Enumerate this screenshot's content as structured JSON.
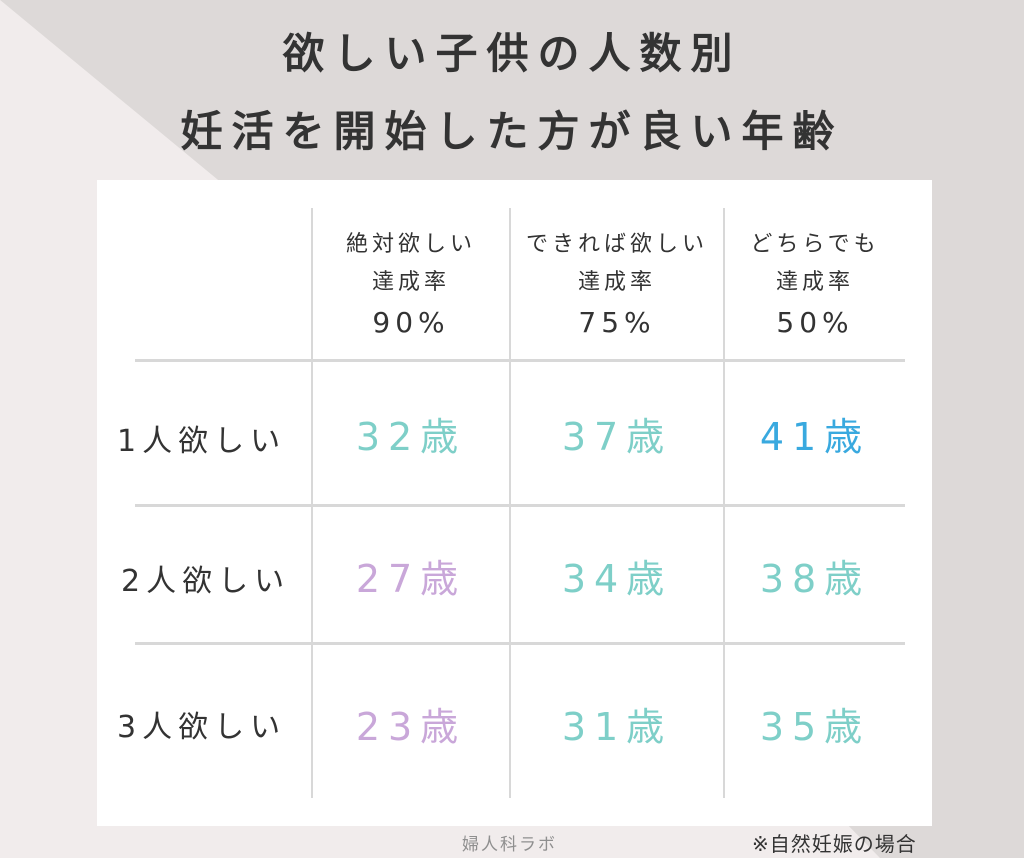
{
  "title": {
    "line1": "欲しい子供の人数別",
    "line2": "妊活を開始した方が良い年齢"
  },
  "columns": [
    {
      "label1": "絶対欲しい",
      "label2": "達成率",
      "rate": "90%"
    },
    {
      "label1": "できれば欲しい",
      "label2": "達成率",
      "rate": "75%"
    },
    {
      "label1": "どちらでも",
      "label2": "達成率",
      "rate": "50%"
    }
  ],
  "rows": [
    {
      "label": "1人欲しい",
      "cells": [
        "32歳",
        "37歳",
        "41歳"
      ]
    },
    {
      "label": "2人欲しい",
      "cells": [
        "27歳",
        "34歳",
        "38歳"
      ]
    },
    {
      "label": "3人欲しい",
      "cells": [
        "23歳",
        "31歳",
        "35歳"
      ]
    }
  ],
  "footer": {
    "source": "婦人科ラボ",
    "note": "※自然妊娠の場合"
  },
  "colors": {
    "teal": "#7ecfc8",
    "lavender": "#c9a7d9",
    "blue": "#39a9df"
  }
}
